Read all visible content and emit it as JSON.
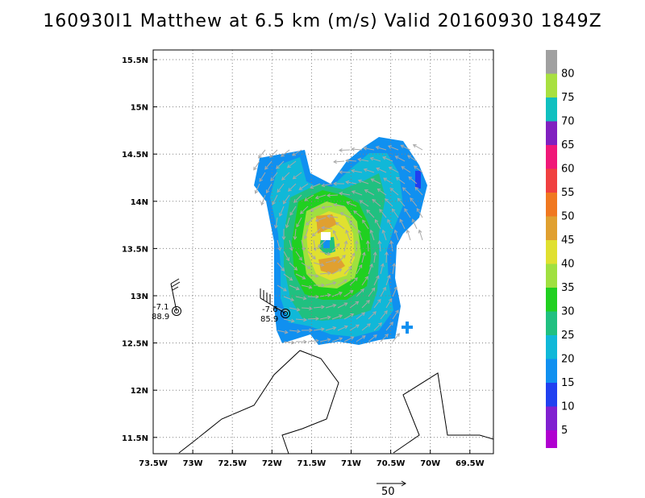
{
  "title": "160930I1 Matthew at 6.5 km (m/s) Valid 20160930 1849Z",
  "map": {
    "lon_ticks": [
      "73.5W",
      "73W",
      "72.5W",
      "72W",
      "71.5W",
      "71W",
      "70.5W",
      "70W",
      "69.5W"
    ],
    "lat_ticks": [
      "15.5N",
      "15N",
      "14.5N",
      "14N",
      "13.5N",
      "13N",
      "12.5N",
      "12N",
      "11.5N"
    ],
    "grid": true,
    "grid_style": "dotted"
  },
  "colorbar": {
    "labels": [
      "80",
      "75",
      "70",
      "65",
      "60",
      "55",
      "50",
      "45",
      "40",
      "35",
      "30",
      "25",
      "20",
      "15",
      "10",
      "5"
    ],
    "colors": [
      "#a0a0a0",
      "#a8e040",
      "#10c0c0",
      "#8020c0",
      "#f01878",
      "#f04040",
      "#f07820",
      "#e0a030",
      "#e0e030",
      "#a0e040",
      "#20d020",
      "#20c080",
      "#10b8d8",
      "#1090f0",
      "#2040f0",
      "#8020d0"
    ],
    "extra_bottom_color": "#b000d0"
  },
  "observations": [
    {
      "id": "obs-left",
      "value1": "-7.1",
      "value2": "88.9"
    },
    {
      "id": "obs-right",
      "value1": "-7.6",
      "value2": "85.9"
    }
  ],
  "scale_vector": {
    "label": "50"
  }
}
